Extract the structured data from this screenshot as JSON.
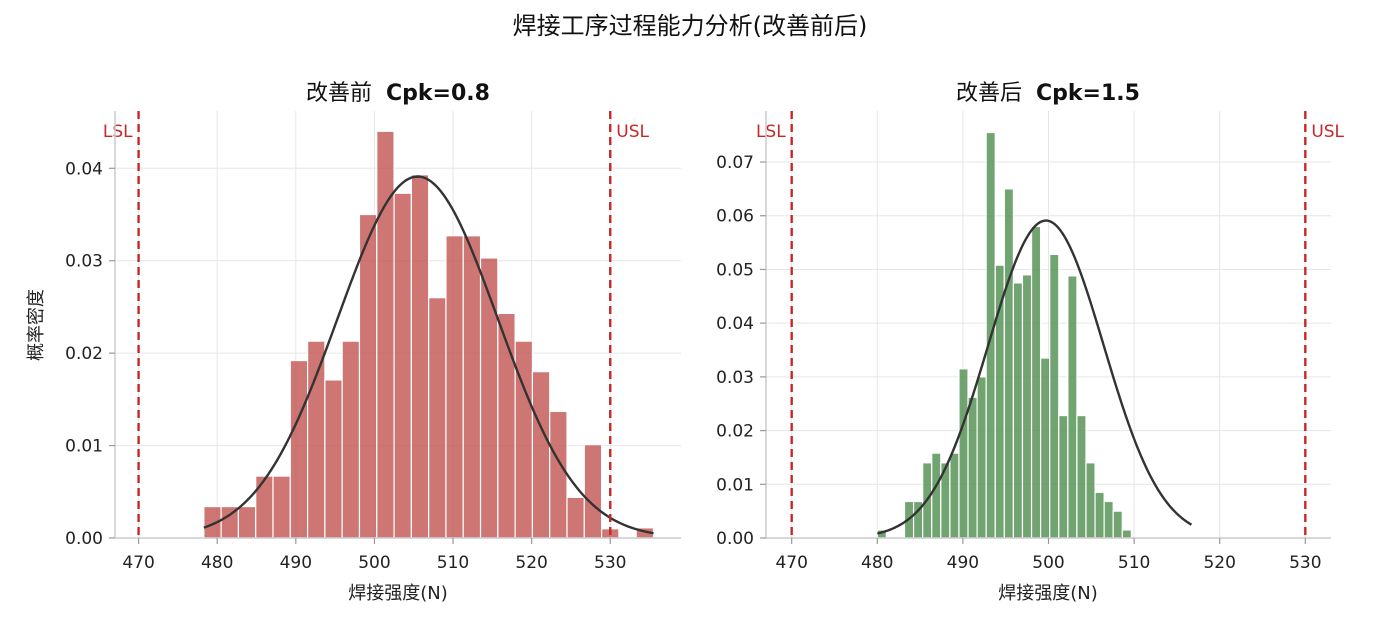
{
  "figure": {
    "title": "焊接工序过程能力分析(改善前后)"
  },
  "chart_data": [
    {
      "type": "bar",
      "panel": "left",
      "title_prefix": "改善前",
      "title_cpk": "Cpk=0.8",
      "xlabel": "焊接强度(N)",
      "ylabel": "概率密度",
      "xlim": [
        467,
        539
      ],
      "ylim": [
        0,
        0.0462
      ],
      "xticks": [
        470,
        480,
        490,
        500,
        510,
        520,
        530
      ],
      "yticks": [
        0.0,
        0.01,
        0.02,
        0.03,
        0.04
      ],
      "ytick_labels": [
        "0.00",
        "0.01",
        "0.02",
        "0.03",
        "0.04"
      ],
      "bar_color": "#c0504d",
      "bin_start": 478.3,
      "bin_width": 2.2,
      "values": [
        0.0034,
        0.0034,
        0.0034,
        0.0067,
        0.0067,
        0.0192,
        0.0213,
        0.0171,
        0.0213,
        0.035,
        0.044,
        0.0373,
        0.0393,
        0.026,
        0.0327,
        0.0327,
        0.0303,
        0.0243,
        0.0213,
        0.018,
        0.0137,
        0.0044,
        0.0101,
        0.001,
        0.0,
        0.0011
      ],
      "curve": {
        "mean": 505.5,
        "sd": 10.2,
        "from": 478.3,
        "to": 535.5,
        "color": "#333333"
      },
      "spec": {
        "lsl": 470,
        "usl": 530,
        "lsl_label": "LSL",
        "usl_label": "USL",
        "color": "#c62828"
      }
    },
    {
      "type": "bar",
      "panel": "right",
      "title_prefix": "改善后",
      "title_cpk": "Cpk=1.5",
      "xlabel": "焊接强度(N)",
      "ylabel": "",
      "xlim": [
        467,
        533
      ],
      "ylim": [
        0,
        0.0795
      ],
      "xticks": [
        470,
        480,
        490,
        500,
        510,
        520,
        530
      ],
      "yticks": [
        0.0,
        0.01,
        0.02,
        0.03,
        0.04,
        0.05,
        0.06,
        0.07
      ],
      "ytick_labels": [
        "0.00",
        "0.01",
        "0.02",
        "0.03",
        "0.04",
        "0.05",
        "0.06",
        "0.07"
      ],
      "bar_color": "#4a8a4a",
      "bin_start": 480.0,
      "bin_width": 1.06,
      "values": [
        0.0015,
        0.0,
        0.0,
        0.0068,
        0.0068,
        0.014,
        0.0158,
        0.014,
        0.0158,
        0.0315,
        0.0262,
        0.03,
        0.0755,
        0.0508,
        0.065,
        0.0475,
        0.049,
        0.058,
        0.0335,
        0.0528,
        0.0228,
        0.0488,
        0.0228,
        0.014,
        0.0085,
        0.0068,
        0.005,
        0.0015
      ],
      "curve": {
        "mean": 499.7,
        "sd": 6.75,
        "from": 480.0,
        "to": 516.7,
        "color": "#333333"
      },
      "spec": {
        "lsl": 470,
        "usl": 530,
        "lsl_label": "LSL",
        "usl_label": "USL",
        "color": "#c62828"
      }
    }
  ]
}
